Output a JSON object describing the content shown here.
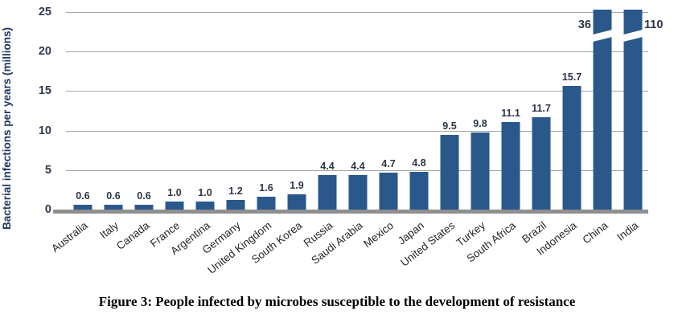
{
  "figure": {
    "caption": "Figure 3: People infected by microbes susceptible to the development of resistance"
  },
  "chart_data": {
    "type": "bar",
    "title": "",
    "xlabel": "",
    "ylabel": "Bacterial infections per years (millions)",
    "ylim": [
      0,
      25
    ],
    "yticks": [
      0,
      5,
      10,
      15,
      20,
      25
    ],
    "grid": true,
    "legend": false,
    "bar_color": "#2a588b",
    "gridline_color": "#a5a5a5",
    "axis_line_color": "#8f8f8f",
    "categories": [
      "Australia",
      "Italy",
      "Canada",
      "France",
      "Argentina",
      "Germany",
      "United Kingdom",
      "South Korea",
      "Russia",
      "Saudi Arabia",
      "Mexico",
      "Japan",
      "United States",
      "Turkey",
      "South Africa",
      "Brazil",
      "Indonesia",
      "China",
      "India"
    ],
    "values": [
      0.6,
      0.6,
      0.6,
      1.0,
      1.0,
      1.2,
      1.6,
      1.9,
      4.4,
      4.4,
      4.7,
      4.8,
      9.5,
      9.8,
      11.1,
      11.7,
      15.7,
      36,
      110
    ],
    "labels": [
      "0.6",
      "0.6",
      "0.6",
      "1.0",
      "1.0",
      "1.2",
      "1.6",
      "1.9",
      "4.4",
      "4.4",
      "4.7",
      "4.8",
      "9.5",
      "9.8",
      "11.1",
      "11.7",
      "15.7",
      "36",
      "110"
    ],
    "overflow_bars": [
      {
        "category": "China",
        "value": 36,
        "label_side": "left"
      },
      {
        "category": "India",
        "value": 110,
        "label_side": "right"
      }
    ]
  }
}
